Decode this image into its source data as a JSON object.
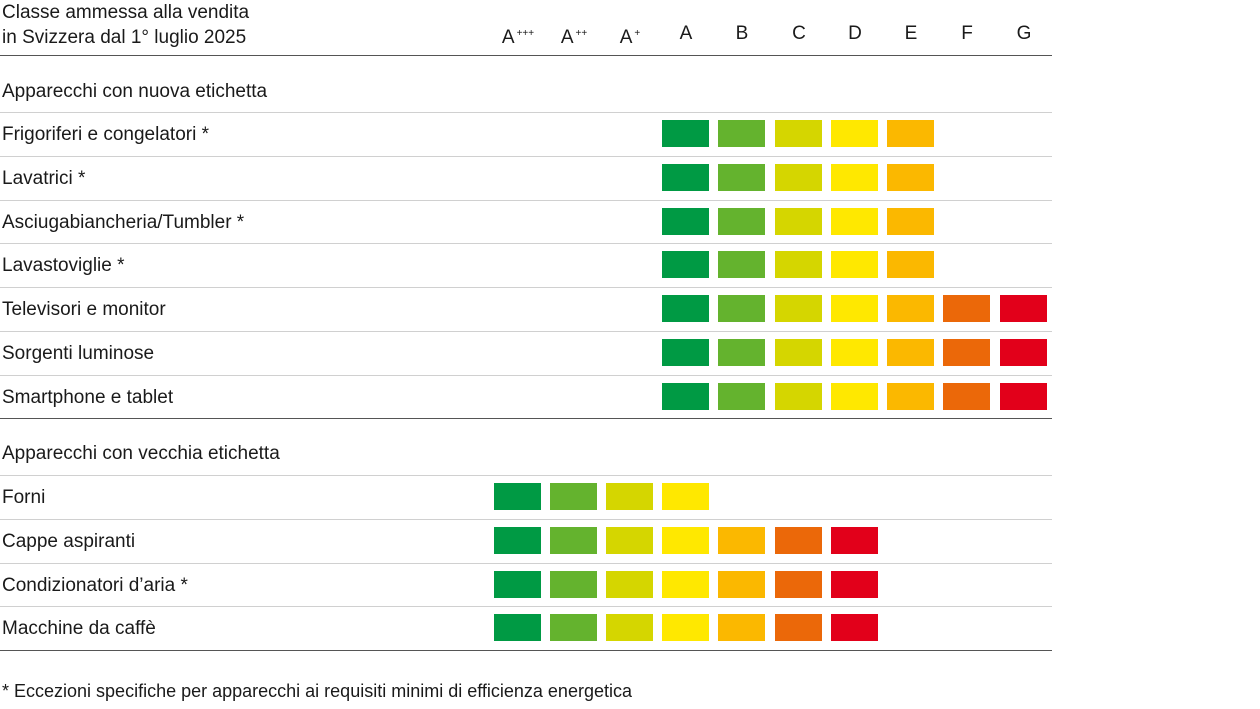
{
  "header": {
    "title_line1": "Classe ammessa alla vendita",
    "title_line2": "in Svizzera dal 1° luglio 2025"
  },
  "classes": [
    {
      "base": "A",
      "sup": "+++"
    },
    {
      "base": "A",
      "sup": "++"
    },
    {
      "base": "A",
      "sup": "+"
    },
    {
      "base": "A",
      "sup": ""
    },
    {
      "base": "B",
      "sup": ""
    },
    {
      "base": "C",
      "sup": ""
    },
    {
      "base": "D",
      "sup": ""
    },
    {
      "base": "E",
      "sup": ""
    },
    {
      "base": "F",
      "sup": ""
    },
    {
      "base": "G",
      "sup": ""
    }
  ],
  "colors": {
    "dark_green": "#009a44",
    "green": "#64b32e",
    "yellow_green": "#d5d600",
    "yellow": "#ffe800",
    "orange_yellow": "#fbb800",
    "orange": "#eb6809",
    "red": "#e2001a"
  },
  "sections": [
    {
      "title": "Apparecchi con nuova etichetta",
      "rows": [
        {
          "label": "Frigoriferi e congelatori *",
          "allowed": [
            "A",
            "B",
            "C",
            "D",
            "E"
          ]
        },
        {
          "label": "Lavatrici *",
          "allowed": [
            "A",
            "B",
            "C",
            "D",
            "E"
          ]
        },
        {
          "label": "Asciugabiancheria/Tumbler *",
          "allowed": [
            "A",
            "B",
            "C",
            "D",
            "E"
          ]
        },
        {
          "label": "Lavastoviglie *",
          "allowed": [
            "A",
            "B",
            "C",
            "D",
            "E"
          ]
        },
        {
          "label": "Televisori e monitor",
          "allowed": [
            "A",
            "B",
            "C",
            "D",
            "E",
            "F",
            "G"
          ]
        },
        {
          "label": "Sorgenti luminose",
          "allowed": [
            "A",
            "B",
            "C",
            "D",
            "E",
            "F",
            "G"
          ]
        },
        {
          "label": "Smartphone e tablet",
          "allowed": [
            "A",
            "B",
            "C",
            "D",
            "E",
            "F",
            "G"
          ]
        }
      ]
    },
    {
      "title": "Apparecchi con vecchia etichetta",
      "rows": [
        {
          "label": "Forni",
          "allowed": [
            "A+++",
            "A++",
            "A+",
            "A"
          ]
        },
        {
          "label": "Cappe aspiranti",
          "allowed": [
            "A+++",
            "A++",
            "A+",
            "A",
            "B",
            "C",
            "D"
          ]
        },
        {
          "label": "Condizionatori d’aria *",
          "allowed": [
            "A+++",
            "A++",
            "A+",
            "A",
            "B",
            "C",
            "D"
          ]
        },
        {
          "label": "Macchine da caffè",
          "allowed": [
            "A+++",
            "A++",
            "A+",
            "A",
            "B",
            "C",
            "D"
          ]
        }
      ]
    }
  ],
  "footnote": "* Eccezioni specifiche per apparecchi ai requisiti minimi di efficienza energetica"
}
